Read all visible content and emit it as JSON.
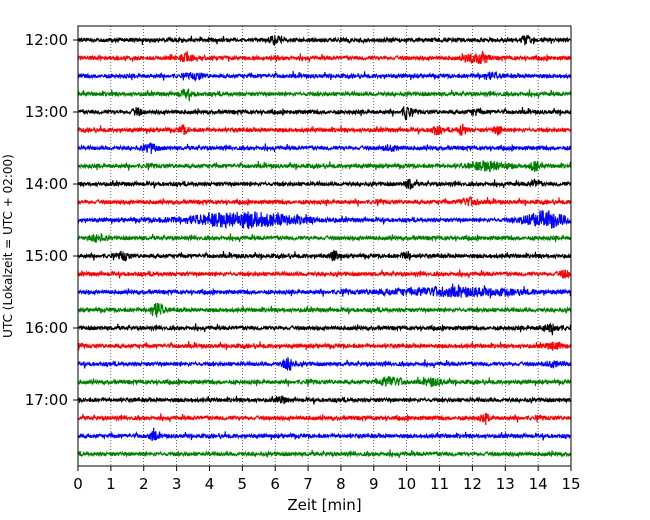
{
  "chart_data": {
    "type": "line",
    "title": "",
    "xlabel": "Zeit  [min]",
    "ylabel": "UTC (Lokalzeit = UTC + 02:00)",
    "xlim": [
      0,
      15
    ],
    "x_ticks": [
      "0",
      "1",
      "2",
      "3",
      "4",
      "5",
      "6",
      "7",
      "8",
      "9",
      "10",
      "11",
      "12",
      "13",
      "14",
      "15"
    ],
    "y_ticks": [
      "12:00",
      "13:00",
      "14:00",
      "15:00",
      "16:00",
      "17:00"
    ],
    "grid": "vertical dotted lines at each minute",
    "trace_colors": [
      "#000000",
      "#ff0000",
      "#0000ff",
      "#008000"
    ],
    "trace_interval_min": 15,
    "traces": [
      {
        "start": "12:00",
        "color": "#000000",
        "events": [
          {
            "t": 6.0,
            "amp": 0.5,
            "w": 0.1
          },
          {
            "t": 13.6,
            "amp": 0.45,
            "w": 0.1
          }
        ]
      },
      {
        "start": "12:15",
        "color": "#ff0000",
        "events": [
          {
            "t": 3.3,
            "amp": 0.4,
            "w": 0.15
          },
          {
            "t": 11.9,
            "amp": 0.45,
            "w": 0.15
          },
          {
            "t": 12.3,
            "amp": 0.75,
            "w": 0.12
          }
        ]
      },
      {
        "start": "12:30",
        "color": "#0000ff",
        "events": [
          {
            "t": 3.6,
            "amp": 0.35,
            "w": 0.15
          },
          {
            "t": 12.5,
            "amp": 0.35,
            "w": 0.2
          }
        ]
      },
      {
        "start": "12:45",
        "color": "#008000",
        "events": [
          {
            "t": 3.3,
            "amp": 0.4,
            "w": 0.15
          }
        ]
      },
      {
        "start": "13:00",
        "color": "#000000",
        "events": [
          {
            "t": 1.8,
            "amp": 0.4,
            "w": 0.1
          },
          {
            "t": 10.0,
            "amp": 0.9,
            "w": 0.08
          },
          {
            "t": 12.1,
            "amp": 0.35,
            "w": 0.1
          }
        ]
      },
      {
        "start": "13:15",
        "color": "#ff0000",
        "events": [
          {
            "t": 3.2,
            "amp": 0.45,
            "w": 0.1
          },
          {
            "t": 10.9,
            "amp": 0.5,
            "w": 0.1
          },
          {
            "t": 11.7,
            "amp": 0.75,
            "w": 0.08
          },
          {
            "t": 12.8,
            "amp": 0.45,
            "w": 0.1
          }
        ]
      },
      {
        "start": "13:30",
        "color": "#0000ff",
        "events": [
          {
            "t": 2.2,
            "amp": 0.55,
            "w": 0.15
          },
          {
            "t": 9.5,
            "amp": 0.25,
            "w": 0.2
          }
        ]
      },
      {
        "start": "13:45",
        "color": "#008000",
        "events": [
          {
            "t": 12.5,
            "amp": 0.5,
            "w": 0.4
          },
          {
            "t": 13.9,
            "amp": 0.6,
            "w": 0.1
          }
        ]
      },
      {
        "start": "14:00",
        "color": "#000000",
        "events": [
          {
            "t": 10.1,
            "amp": 0.5,
            "w": 0.1
          },
          {
            "t": 13.9,
            "amp": 0.45,
            "w": 0.1
          }
        ]
      },
      {
        "start": "14:15",
        "color": "#ff0000",
        "events": [
          {
            "t": 11.9,
            "amp": 0.4,
            "w": 0.2
          }
        ]
      },
      {
        "start": "14:30",
        "color": "#0000ff",
        "events": [
          {
            "t": 5.0,
            "amp": 0.85,
            "w": 1.2
          },
          {
            "t": 14.2,
            "amp": 1.0,
            "w": 0.45
          }
        ]
      },
      {
        "start": "14:45",
        "color": "#008000",
        "events": [
          {
            "t": 0.6,
            "amp": 0.4,
            "w": 0.15
          }
        ]
      },
      {
        "start": "15:00",
        "color": "#000000",
        "events": [
          {
            "t": 1.4,
            "amp": 0.5,
            "w": 0.1
          },
          {
            "t": 7.8,
            "amp": 0.55,
            "w": 0.1
          },
          {
            "t": 10.0,
            "amp": 0.45,
            "w": 0.1
          }
        ]
      },
      {
        "start": "15:15",
        "color": "#ff0000",
        "events": [
          {
            "t": 14.8,
            "amp": 0.4,
            "w": 0.1
          }
        ]
      },
      {
        "start": "15:30",
        "color": "#0000ff",
        "events": [
          {
            "t": 11.4,
            "amp": 0.45,
            "w": 1.5
          }
        ]
      },
      {
        "start": "15:45",
        "color": "#008000",
        "events": [
          {
            "t": 2.4,
            "amp": 0.9,
            "w": 0.15
          }
        ]
      },
      {
        "start": "16:00",
        "color": "#000000",
        "events": [
          {
            "t": 14.4,
            "amp": 0.35,
            "w": 0.2
          }
        ]
      },
      {
        "start": "16:15",
        "color": "#ff0000",
        "events": [
          {
            "t": 14.5,
            "amp": 0.35,
            "w": 0.2
          }
        ]
      },
      {
        "start": "16:30",
        "color": "#0000ff",
        "events": [
          {
            "t": 6.4,
            "amp": 0.7,
            "w": 0.12
          },
          {
            "t": 14.5,
            "amp": 0.3,
            "w": 0.2
          }
        ]
      },
      {
        "start": "16:45",
        "color": "#008000",
        "events": [
          {
            "t": 9.5,
            "amp": 0.55,
            "w": 0.25
          },
          {
            "t": 10.8,
            "amp": 0.4,
            "w": 0.2
          }
        ]
      },
      {
        "start": "17:00",
        "color": "#000000",
        "events": [
          {
            "t": 6.2,
            "amp": 0.35,
            "w": 0.1
          }
        ]
      },
      {
        "start": "17:15",
        "color": "#ff0000",
        "events": [
          {
            "t": 12.4,
            "amp": 0.4,
            "w": 0.1
          }
        ]
      },
      {
        "start": "17:30",
        "color": "#0000ff",
        "events": [
          {
            "t": 2.3,
            "amp": 0.45,
            "w": 0.1
          }
        ]
      },
      {
        "start": "17:45",
        "color": "#008000",
        "events": []
      }
    ]
  }
}
